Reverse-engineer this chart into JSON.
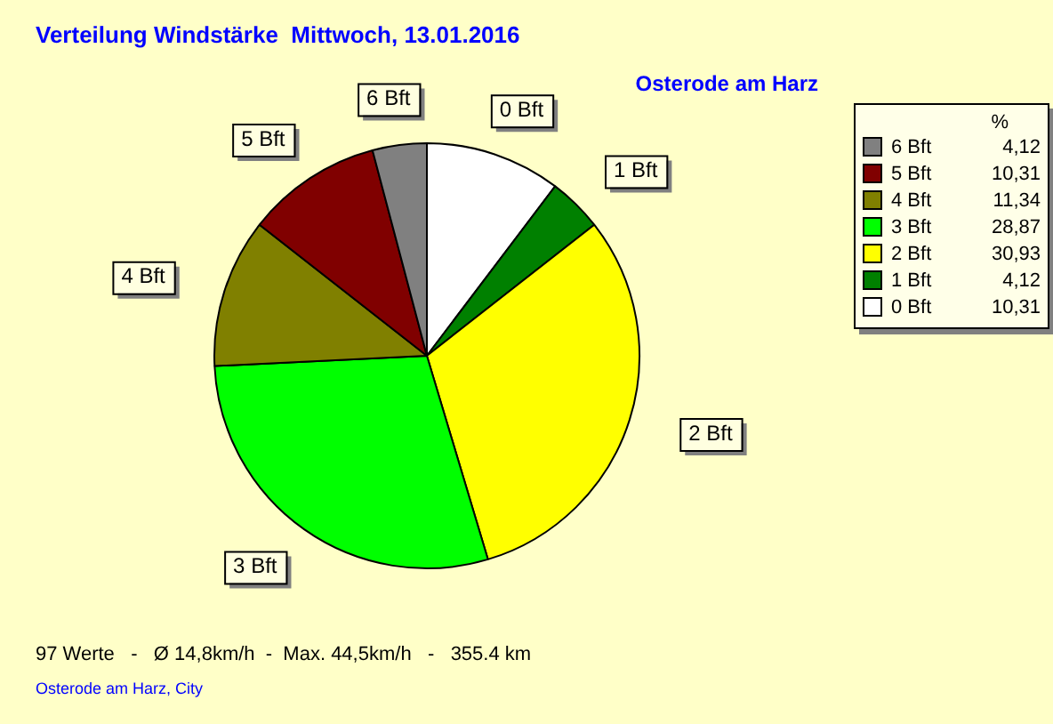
{
  "chart_data": {
    "type": "pie",
    "title": "Verteilung Windstärke  Mittwoch, 13.01.2016",
    "subtitle": "Osterode am Harz",
    "legend_title": "%",
    "legend": "right",
    "categories": [
      "0 Bft",
      "1 Bft",
      "2 Bft",
      "3 Bft",
      "4 Bft",
      "5 Bft",
      "6 Bft"
    ],
    "values": [
      10.31,
      4.12,
      30.93,
      28.87,
      11.34,
      10.31,
      4.12
    ],
    "value_labels": [
      "10,31",
      "4,12",
      "30,93",
      "28,87",
      "11,34",
      "10,31",
      "4,12"
    ],
    "colors": [
      "#ffffff",
      "#008000",
      "#ffff00",
      "#00ff00",
      "#808000",
      "#800000",
      "#808080"
    ],
    "annotations": [
      "97 Werte   -   Ø 14,8km/h  -  Max. 44,5km/h   -   355.4 km",
      "Osterode am Harz, City"
    ]
  }
}
